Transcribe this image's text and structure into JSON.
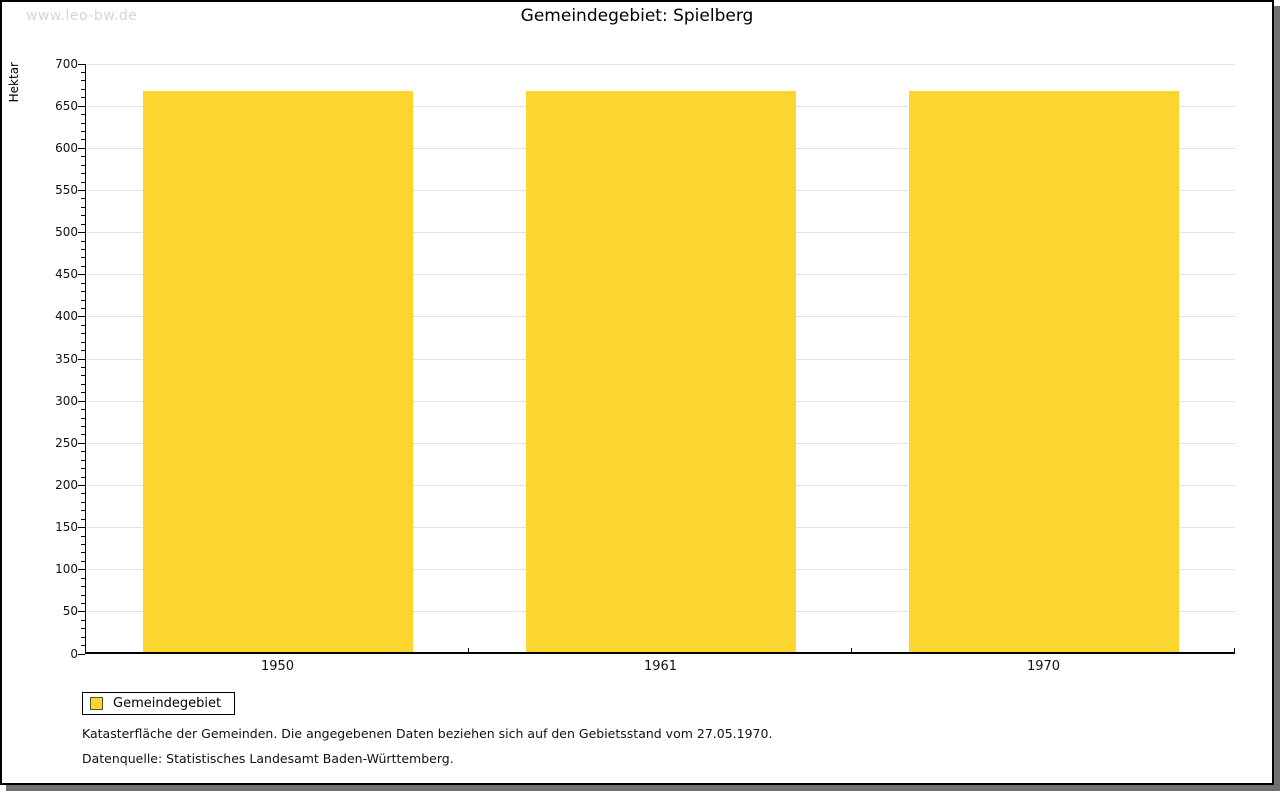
{
  "watermark": "www.leo-bw.de",
  "title": "Gemeindegebiet: Spielberg",
  "chart_data": {
    "type": "bar",
    "title": "Gemeindegebiet: Spielberg",
    "categories": [
      "1950",
      "1961",
      "1970"
    ],
    "series": [
      {
        "name": "Gemeindegebiet",
        "values": [
          666,
          666,
          666
        ]
      }
    ],
    "xlabel": "",
    "ylabel": "Hektar",
    "ylim": [
      0,
      700
    ],
    "yticks": [
      0,
      50,
      100,
      150,
      200,
      250,
      300,
      350,
      400,
      450,
      500,
      550,
      600,
      650,
      700
    ],
    "minor_tick_step": 10,
    "grid": true,
    "legend_position": "bottom-left",
    "unit": "Hektar"
  },
  "legend": {
    "label": "Gemeindegebiet"
  },
  "footnotes": {
    "line1": "Katasterfläche der Gemeinden. Die angegebenen Daten beziehen sich auf den Gebietsstand vom 27.05.1970.",
    "line2": "Datenquelle: Statistisches Landesamt Baden-Württemberg."
  },
  "colors": {
    "bar": "#fcd62f",
    "grid": "#e3e3e3",
    "axis": "#000000",
    "watermark_text": "#d6d6d6",
    "frame_shadow": "#707070"
  }
}
